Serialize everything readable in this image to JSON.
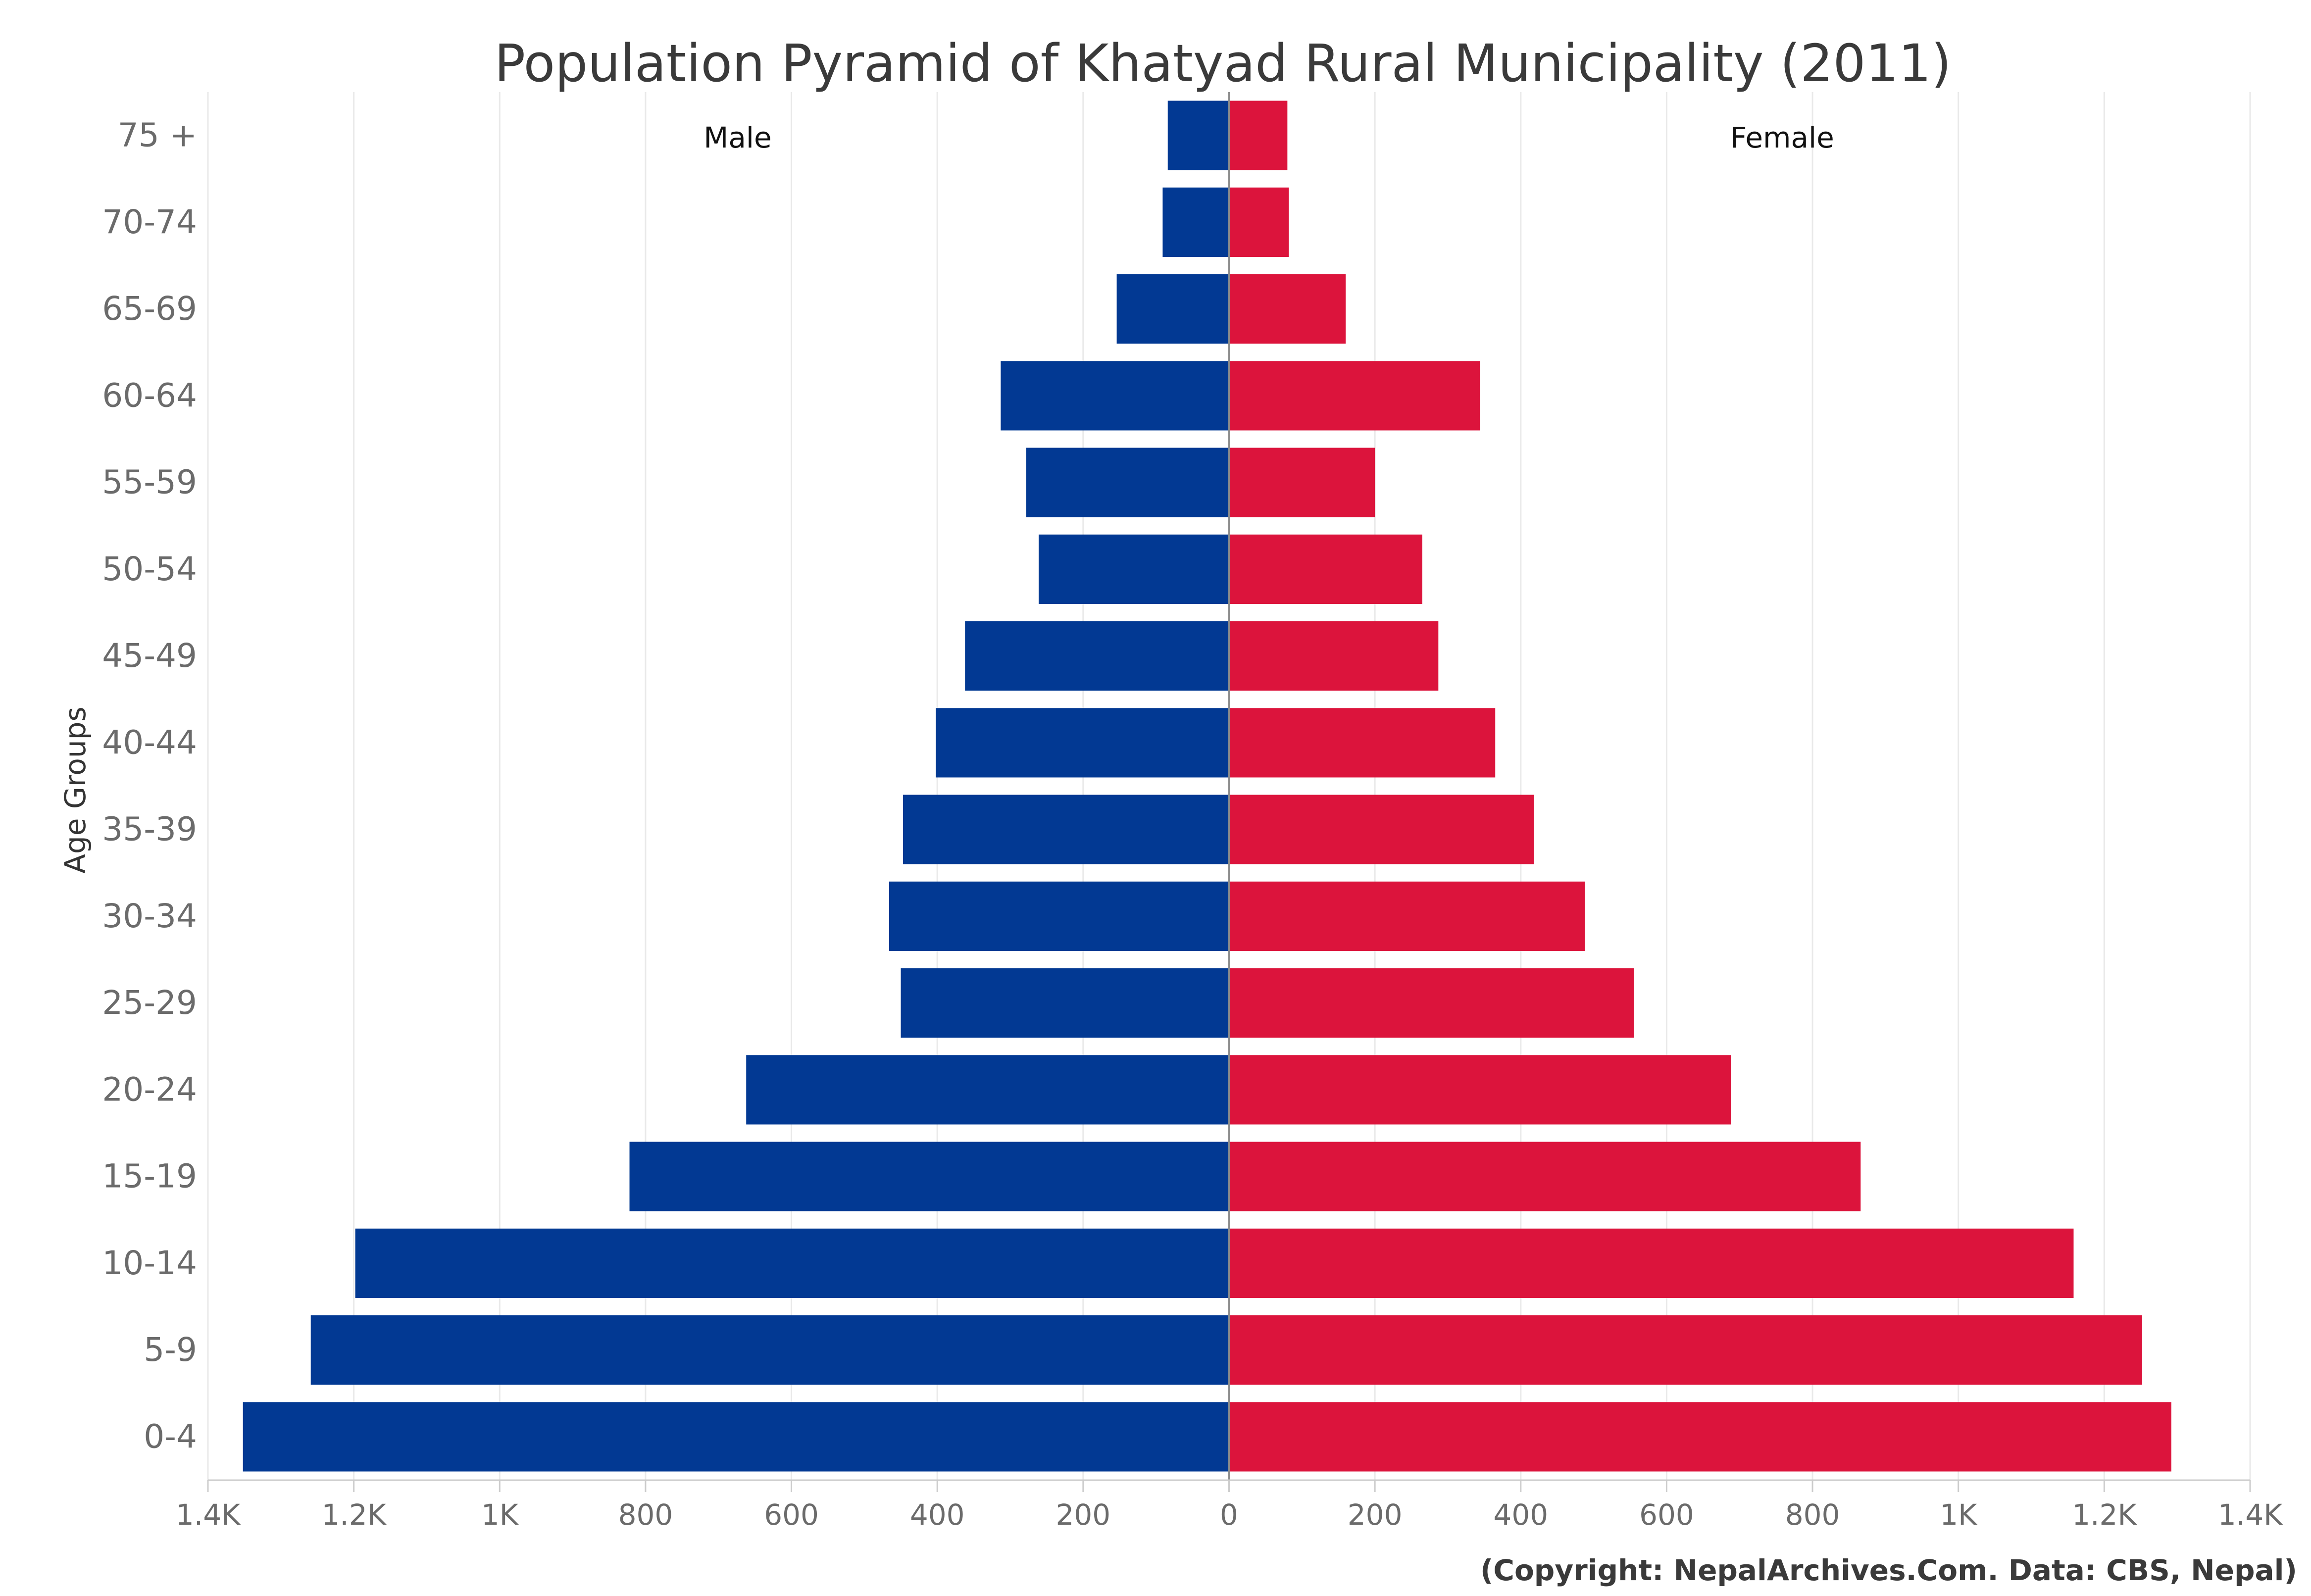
{
  "chart_data": {
    "type": "bar",
    "orientation": "horizontal",
    "title": "Population Pyramid of Khatyad Rural Municipality (2011)",
    "ylabel": "Age Groups",
    "xlabel": "",
    "categories": [
      "75 +",
      "70-74",
      "65-69",
      "60-64",
      "55-59",
      "50-54",
      "45-49",
      "40-44",
      "35-39",
      "30-34",
      "25-29",
      "20-24",
      "15-19",
      "10-14",
      "5-9",
      "0-4"
    ],
    "series": [
      {
        "name": "Male",
        "color": "#023993",
        "values": [
          84,
          91,
          154,
          313,
          278,
          261,
          362,
          402,
          447,
          466,
          450,
          662,
          822,
          1198,
          1259,
          1352
        ]
      },
      {
        "name": "Female",
        "color": "#DC143C",
        "values": [
          80,
          82,
          160,
          344,
          200,
          265,
          287,
          365,
          418,
          488,
          555,
          688,
          866,
          1158,
          1252,
          1292
        ]
      }
    ],
    "xlim": [
      -1400,
      1400
    ],
    "xticks": [
      {
        "value": -1400,
        "label": "1.4K"
      },
      {
        "value": -1200,
        "label": "1.2K"
      },
      {
        "value": -1000,
        "label": "1K"
      },
      {
        "value": -800,
        "label": "800"
      },
      {
        "value": -600,
        "label": "600"
      },
      {
        "value": -400,
        "label": "400"
      },
      {
        "value": -200,
        "label": "200"
      },
      {
        "value": 0,
        "label": "0"
      },
      {
        "value": 200,
        "label": "200"
      },
      {
        "value": 400,
        "label": "400"
      },
      {
        "value": 600,
        "label": "600"
      },
      {
        "value": 800,
        "label": "800"
      },
      {
        "value": 1000,
        "label": "1K"
      },
      {
        "value": 1200,
        "label": "1.2K"
      },
      {
        "value": 1400,
        "label": "1.4K"
      }
    ],
    "grid": true,
    "legend": "inline-top",
    "credit": "(Copyright: NepalArchives.Com. Data: CBS, Nepal)"
  }
}
